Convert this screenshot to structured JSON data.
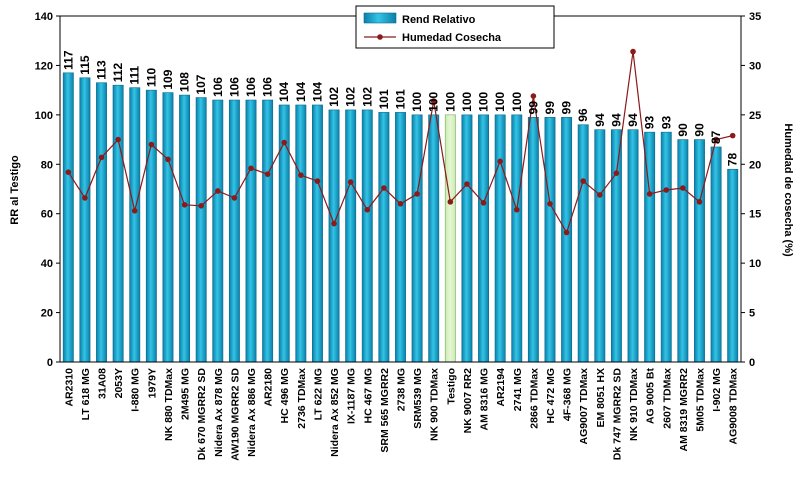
{
  "chart_data": {
    "type": "bar",
    "title": "",
    "xlabel": "",
    "ylabel": "RR al Testigo",
    "y2label": "Humedad de cosecha (%)",
    "ylim": [
      0,
      140
    ],
    "yticks": [
      0,
      20,
      40,
      60,
      80,
      100,
      120,
      140
    ],
    "y2lim": [
      0,
      35
    ],
    "y2ticks": [
      0,
      5,
      10,
      15,
      20,
      25,
      30,
      35
    ],
    "legend_position": "top-center",
    "highlight_category": "Testigo",
    "colors": {
      "bar": "#33c4e6",
      "bar_dark": "#0b7fa8",
      "highlight_bar": "#e6f7d4",
      "line": "#8b1a1a",
      "axis": "#000000"
    },
    "categories": [
      "AR2310",
      "LT 618 MG",
      "31A08",
      "2053Y",
      "I-880 MG",
      "1979Y",
      "NK 880 TDMax",
      "2M495 MG",
      "Dk 670 MGRR2 SD",
      "Nidera Ax 878 MG",
      "AW190 MGRR2 SD",
      "Nidera Ax 886 MG",
      "AR2180",
      "HC 496 MG",
      "2736 TDMax",
      "LT 622 MG",
      "Nidera Ax 852 MG",
      "IX-1187 MG",
      "HC 467 MG",
      "SRM 565 MGRR2",
      "2738 MG",
      "SRM539 MG",
      "NK 900 TDMax",
      "Testigo",
      "NK 9007 RR2",
      "AM 8316 MG",
      "AR2194",
      "2741 MG",
      "2866 TDMax",
      "HC 472 MG",
      "4F-368 MG",
      "AG9007 TDMax",
      "EM 8051 HX",
      "Dk 747 MGRR2 SD",
      "NK 910 TDMax",
      "AG 9005 Bt",
      "2607 TDMax",
      "AM 8319 MGRR2",
      "5M05 TDMax",
      "I-902 MG",
      "AG9008 TDMax"
    ],
    "series": [
      {
        "name": "Rend Relativo",
        "type": "bar",
        "axis": "left",
        "values": [
          117,
          115,
          113,
          112,
          111,
          110,
          109,
          108,
          107,
          106,
          106,
          106,
          106,
          104,
          104,
          104,
          102,
          102,
          102,
          101,
          101,
          100,
          100,
          100,
          100,
          100,
          100,
          100,
          99,
          99,
          99,
          96,
          94,
          94,
          94,
          93,
          93,
          90,
          90,
          87,
          78
        ],
        "labels": [
          "117",
          "115",
          "113",
          "112",
          "111",
          "110",
          "109",
          "108",
          "107",
          "106",
          "106",
          "106",
          "106",
          "104",
          "104",
          "104",
          "102",
          "102",
          "102",
          "101",
          "101",
          "100",
          "100",
          "100",
          "100",
          "100",
          "100",
          "100",
          "99",
          "99",
          "99",
          "96",
          "94",
          "94",
          "94",
          "93",
          "93",
          "90",
          "90",
          "87",
          "78"
        ]
      },
      {
        "name": "Humedad Cosecha",
        "type": "line",
        "axis": "right",
        "values": [
          19.2,
          16.6,
          20.7,
          22.5,
          15.3,
          22.0,
          20.5,
          15.9,
          15.8,
          17.3,
          16.6,
          19.6,
          19.0,
          22.2,
          18.9,
          18.3,
          14.0,
          18.2,
          15.4,
          17.6,
          16.0,
          17.0,
          26.4,
          16.2,
          18.0,
          16.1,
          20.3,
          15.4,
          26.9,
          16.0,
          13.1,
          18.3,
          16.9,
          19.1,
          31.4,
          17.0,
          17.4,
          17.6,
          16.2,
          22.5,
          22.9
        ]
      }
    ]
  }
}
